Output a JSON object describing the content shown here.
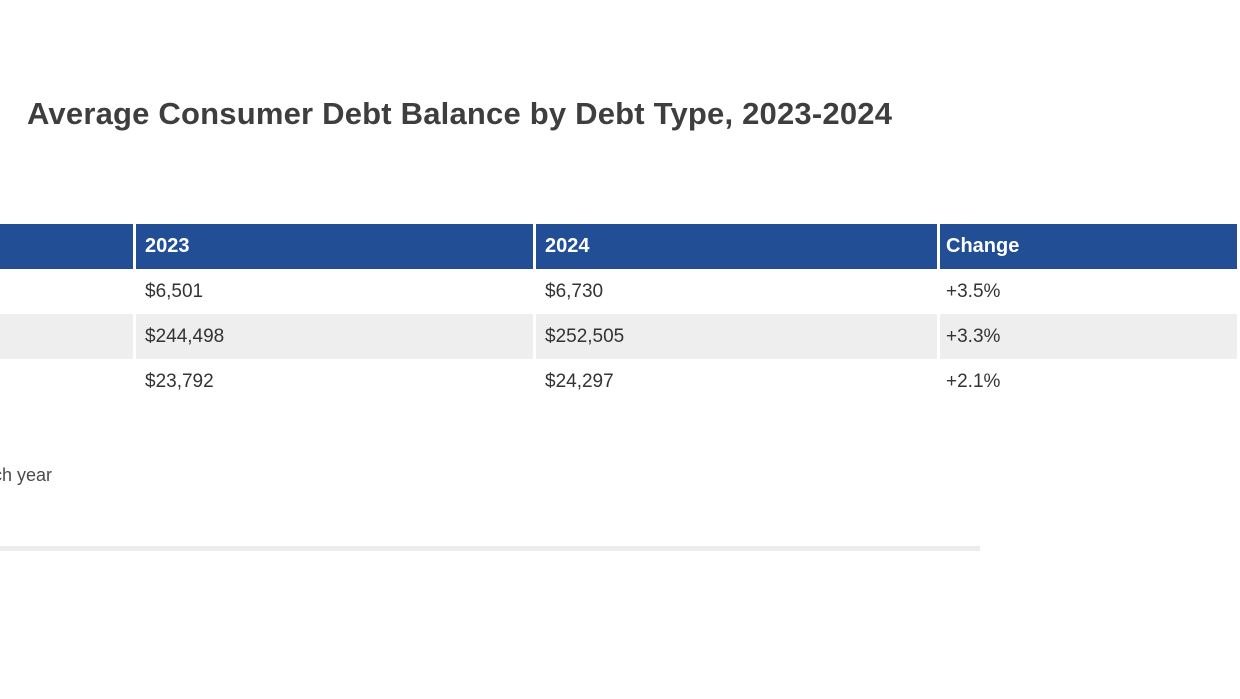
{
  "page": {
    "title": "Average Consumer Debt Balance by Debt Type, 2023-2024"
  },
  "table": {
    "columns": [
      {
        "label": ""
      },
      {
        "label": "2023"
      },
      {
        "label": "2024"
      },
      {
        "label": "Change"
      }
    ],
    "rows": [
      {
        "label": "",
        "y2023": "$6,501",
        "y2024": "$6,730",
        "change": "+3.5%"
      },
      {
        "label": "",
        "y2023": "$244,498",
        "y2024": "$252,505",
        "change": "+3.3%"
      },
      {
        "label": "",
        "y2023": "$23,792",
        "y2024": "$24,297",
        "change": "+2.1%"
      }
    ]
  },
  "chart_data": {
    "type": "table",
    "title": "Average Consumer Debt Balance by Debt Type, 2023-2024",
    "categories": [
      "2023",
      "2024",
      "Change"
    ],
    "series": [
      {
        "name": "row-1",
        "values": [
          6501,
          6730,
          "+3.5%"
        ]
      },
      {
        "name": "row-2",
        "values": [
          244498,
          252505,
          "+3.3%"
        ]
      },
      {
        "name": "row-3",
        "values": [
          23792,
          24297,
          "+2.1%"
        ]
      }
    ]
  },
  "footnote": {
    "visible_fragment": "ch year"
  },
  "colors": {
    "header_bg": "#214e95",
    "header_text": "#ffffff",
    "row_alt_bg": "#eeeeee",
    "cell_text": "#333333",
    "title_text": "#3e3e3e",
    "separator": "#ececec"
  }
}
